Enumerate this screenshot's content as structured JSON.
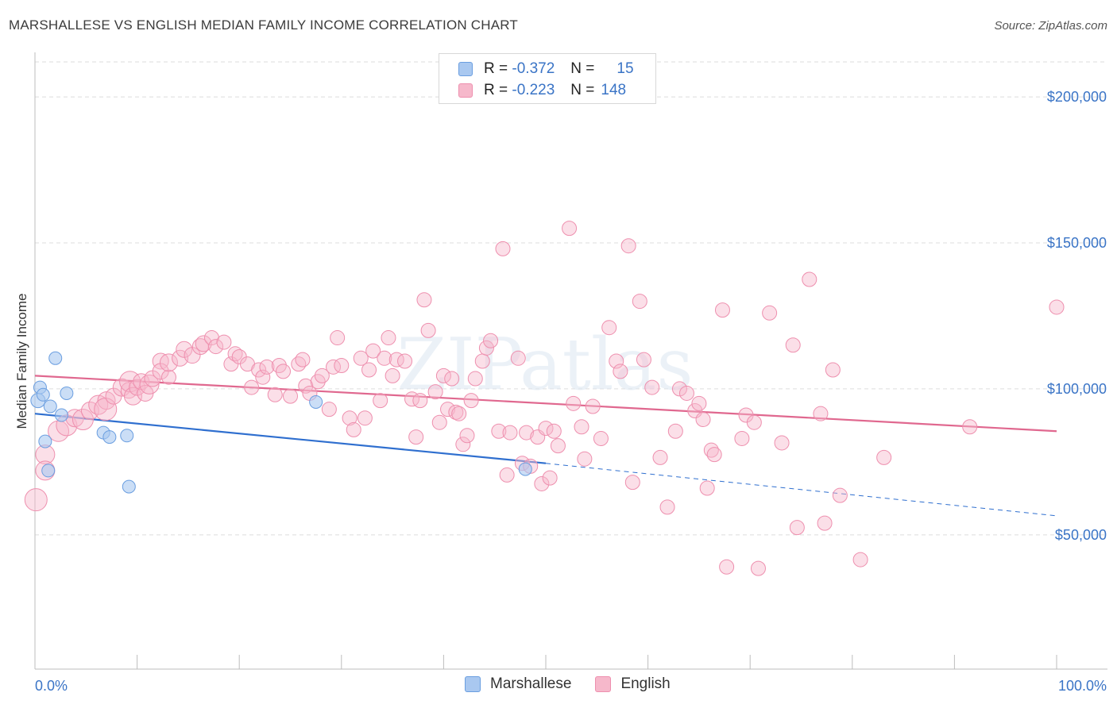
{
  "title": "MARSHALLESE VS ENGLISH MEDIAN FAMILY INCOME CORRELATION CHART",
  "source": "Source: ZipAtlas.com",
  "watermark": "ZIPatlas",
  "colors": {
    "blue_fill": "#a9c8f0",
    "blue_stroke": "#6a9ee0",
    "blue_line": "#2f6fcf",
    "pink_fill": "#f6b8cb",
    "pink_stroke": "#ee8fae",
    "pink_line": "#e0688f",
    "axis_text": "#3a74c6",
    "grid": "#dedede"
  },
  "legend": {
    "rows": [
      {
        "r_label": "R =",
        "r_value": "-0.372",
        "n_label": "N =",
        "n_value": "15",
        "series": "Marshallese"
      },
      {
        "r_label": "R =",
        "r_value": "-0.223",
        "n_label": "N =",
        "n_value": "148",
        "series": "English"
      }
    ]
  },
  "bottom_legend": [
    "Marshallese",
    "English"
  ],
  "chart_data": {
    "type": "scatter",
    "title": "MARSHALLESE VS ENGLISH MEDIAN FAMILY INCOME CORRELATION CHART",
    "xlabel": "",
    "ylabel": "Median Family Income",
    "x_tick_labels": [
      "0.0%",
      "100.0%"
    ],
    "y_tick_labels": [
      "$50,000",
      "$100,000",
      "$150,000",
      "$200,000"
    ],
    "xlim": [
      0,
      100
    ],
    "ylim": [
      4000,
      212000
    ],
    "y_gridlines": [
      50000,
      100000,
      150000,
      200000
    ],
    "grid": true,
    "legend_position": "top-center",
    "series": [
      {
        "name": "Marshallese",
        "color": "#6a9ee0",
        "points": [
          [
            0.3,
            96000,
            9
          ],
          [
            0.5,
            100500,
            8
          ],
          [
            0.8,
            98000,
            8
          ],
          [
            1.0,
            82000,
            8
          ],
          [
            1.3,
            72000,
            8
          ],
          [
            1.5,
            94000,
            8
          ],
          [
            2.0,
            110500,
            8
          ],
          [
            2.6,
            91000,
            8
          ],
          [
            3.1,
            98500,
            8
          ],
          [
            6.7,
            85000,
            8
          ],
          [
            7.3,
            83500,
            8
          ],
          [
            9.0,
            84000,
            8
          ],
          [
            9.2,
            66500,
            8
          ],
          [
            27.5,
            95500,
            8
          ],
          [
            48.0,
            72500,
            8
          ]
        ],
        "trend": {
          "x0": 0,
          "y0": 91500,
          "x1": 50,
          "y1": 74500,
          "dashed_to_x": 100,
          "dashed_to_y": 56500
        }
      },
      {
        "name": "English",
        "color": "#ee8fae",
        "points": [
          [
            0.1,
            62000,
            14
          ],
          [
            1.0,
            77500,
            12
          ],
          [
            1.0,
            72000,
            12
          ],
          [
            2.3,
            85500,
            13
          ],
          [
            3.1,
            87500,
            13
          ],
          [
            3.9,
            90000,
            11
          ],
          [
            4.7,
            89500,
            13
          ],
          [
            5.4,
            92500,
            11
          ],
          [
            6.2,
            94500,
            12
          ],
          [
            7.0,
            96000,
            11
          ],
          [
            6.9,
            93000,
            14
          ],
          [
            7.7,
            97500,
            10
          ],
          [
            8.5,
            100500,
            11
          ],
          [
            9.2,
            99500,
            10
          ],
          [
            9.3,
            102500,
            13
          ],
          [
            9.6,
            97500,
            11
          ],
          [
            10.0,
            100500,
            10
          ],
          [
            10.4,
            102500,
            10
          ],
          [
            10.8,
            98500,
            10
          ],
          [
            11.2,
            101500,
            12
          ],
          [
            11.5,
            103500,
            10
          ],
          [
            12.3,
            109500,
            10
          ],
          [
            12.3,
            106000,
            10
          ],
          [
            13.1,
            104000,
            9
          ],
          [
            13.1,
            109000,
            11
          ],
          [
            14.2,
            110500,
            10
          ],
          [
            14.6,
            113500,
            10
          ],
          [
            15.4,
            111500,
            10
          ],
          [
            16.2,
            114500,
            10
          ],
          [
            16.5,
            115500,
            10
          ],
          [
            17.3,
            117500,
            9
          ],
          [
            17.7,
            114500,
            9
          ],
          [
            18.5,
            116000,
            9
          ],
          [
            19.2,
            108500,
            9
          ],
          [
            19.6,
            112000,
            9
          ],
          [
            20.0,
            111000,
            9
          ],
          [
            20.8,
            108500,
            9
          ],
          [
            21.2,
            100500,
            9
          ],
          [
            21.9,
            106500,
            9
          ],
          [
            22.3,
            104000,
            9
          ],
          [
            22.7,
            107500,
            9
          ],
          [
            23.5,
            98000,
            9
          ],
          [
            23.9,
            108000,
            9
          ],
          [
            24.3,
            106000,
            9
          ],
          [
            25.0,
            97500,
            9
          ],
          [
            25.8,
            108500,
            9
          ],
          [
            26.2,
            110000,
            9
          ],
          [
            26.5,
            101000,
            9
          ],
          [
            26.9,
            98500,
            9
          ],
          [
            27.7,
            102500,
            9
          ],
          [
            28.1,
            104500,
            9
          ],
          [
            28.8,
            93000,
            9
          ],
          [
            29.2,
            107500,
            9
          ],
          [
            29.6,
            117500,
            9
          ],
          [
            30.0,
            108000,
            9
          ],
          [
            30.8,
            90000,
            9
          ],
          [
            31.2,
            86000,
            9
          ],
          [
            31.9,
            110500,
            9
          ],
          [
            32.3,
            90000,
            9
          ],
          [
            32.7,
            106500,
            9
          ],
          [
            33.1,
            113000,
            9
          ],
          [
            33.8,
            96000,
            9
          ],
          [
            34.2,
            110500,
            9
          ],
          [
            34.6,
            117500,
            9
          ],
          [
            35.0,
            104500,
            9
          ],
          [
            35.4,
            110000,
            9
          ],
          [
            36.2,
            109500,
            9
          ],
          [
            36.9,
            96500,
            9
          ],
          [
            37.3,
            83500,
            9
          ],
          [
            37.7,
            96000,
            9
          ],
          [
            38.1,
            130500,
            9
          ],
          [
            38.5,
            120000,
            9
          ],
          [
            39.2,
            99000,
            9
          ],
          [
            39.6,
            88500,
            9
          ],
          [
            40.0,
            104500,
            9
          ],
          [
            40.4,
            93000,
            9
          ],
          [
            40.8,
            103500,
            9
          ],
          [
            41.2,
            92000,
            9
          ],
          [
            41.5,
            91500,
            9
          ],
          [
            41.9,
            81000,
            9
          ],
          [
            42.3,
            84000,
            9
          ],
          [
            42.7,
            96000,
            9
          ],
          [
            43.1,
            103500,
            9
          ],
          [
            43.8,
            109500,
            9
          ],
          [
            44.2,
            114000,
            9
          ],
          [
            44.6,
            116500,
            9
          ],
          [
            45.4,
            85500,
            9
          ],
          [
            45.8,
            148000,
            9
          ],
          [
            46.2,
            70500,
            9
          ],
          [
            46.5,
            85000,
            9
          ],
          [
            47.3,
            110500,
            9
          ],
          [
            47.7,
            74500,
            9
          ],
          [
            48.1,
            85000,
            9
          ],
          [
            48.5,
            73500,
            9
          ],
          [
            49.2,
            83500,
            9
          ],
          [
            49.6,
            67500,
            9
          ],
          [
            50.0,
            86500,
            9
          ],
          [
            50.4,
            69500,
            9
          ],
          [
            50.8,
            85500,
            9
          ],
          [
            51.2,
            80500,
            9
          ],
          [
            52.3,
            155000,
            9
          ],
          [
            52.7,
            95000,
            9
          ],
          [
            53.5,
            87000,
            9
          ],
          [
            53.8,
            76000,
            9
          ],
          [
            54.6,
            94000,
            9
          ],
          [
            55.4,
            83000,
            9
          ],
          [
            56.2,
            121000,
            9
          ],
          [
            56.9,
            109500,
            9
          ],
          [
            57.3,
            106000,
            9
          ],
          [
            58.1,
            149000,
            9
          ],
          [
            58.5,
            68000,
            9
          ],
          [
            59.2,
            130000,
            9
          ],
          [
            59.6,
            110000,
            9
          ],
          [
            60.4,
            100500,
            9
          ],
          [
            61.2,
            76500,
            9
          ],
          [
            61.9,
            59500,
            9
          ],
          [
            62.7,
            85500,
            9
          ],
          [
            63.1,
            100000,
            9
          ],
          [
            63.8,
            98500,
            9
          ],
          [
            64.6,
            92500,
            9
          ],
          [
            65.0,
            95000,
            9
          ],
          [
            65.4,
            89500,
            9
          ],
          [
            65.8,
            66000,
            9
          ],
          [
            66.2,
            79000,
            9
          ],
          [
            66.5,
            77500,
            9
          ],
          [
            67.3,
            127000,
            9
          ],
          [
            67.7,
            39000,
            9
          ],
          [
            69.2,
            83000,
            9
          ],
          [
            69.6,
            91000,
            9
          ],
          [
            70.4,
            88500,
            9
          ],
          [
            70.8,
            38500,
            9
          ],
          [
            71.9,
            126000,
            9
          ],
          [
            73.1,
            81500,
            9
          ],
          [
            74.2,
            115000,
            9
          ],
          [
            74.6,
            52500,
            9
          ],
          [
            75.8,
            137500,
            9
          ],
          [
            76.9,
            91500,
            9
          ],
          [
            77.3,
            54000,
            9
          ],
          [
            78.1,
            106500,
            9
          ],
          [
            78.8,
            63500,
            9
          ],
          [
            80.8,
            41500,
            9
          ],
          [
            83.1,
            76500,
            9
          ],
          [
            91.5,
            87000,
            9
          ],
          [
            100.0,
            128000,
            9
          ]
        ],
        "trend": {
          "x0": 0,
          "y0": 104500,
          "x1": 100,
          "y1": 85500
        }
      }
    ]
  }
}
